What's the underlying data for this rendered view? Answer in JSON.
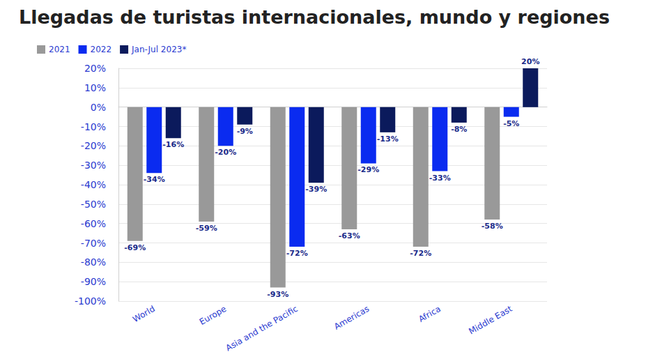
{
  "chart_data": {
    "type": "bar",
    "title": "Llegadas de turistas internacionales, mundo y regiones",
    "categories": [
      "World",
      "Europe",
      "Asia and the Pacific",
      "Americas",
      "Africa",
      "Middle East"
    ],
    "series": [
      {
        "name": "2021",
        "color": "#999999",
        "values": [
          -69,
          -59,
          -93,
          -63,
          -72,
          -58
        ],
        "value_labels": [
          "-69%",
          "-59%",
          "-93%",
          "-63%",
          "-72%",
          "-58%"
        ]
      },
      {
        "name": "2022",
        "color": "#0a2bf0",
        "values": [
          -34,
          -20,
          -72,
          -29,
          -33,
          -5
        ],
        "value_labels": [
          "-34%",
          "-20%",
          "-72%",
          "-29%",
          "-33%",
          "-5%"
        ]
      },
      {
        "name": "Jan-Jul 2023*",
        "color": "#0b1a5c",
        "values": [
          -16,
          -9,
          -39,
          -13,
          -8,
          20
        ],
        "value_labels": [
          "-16%",
          "-9%",
          "-39%",
          "-13%",
          "-8%",
          "20%"
        ]
      }
    ],
    "ylim": [
      -100,
      20
    ],
    "yticks": [
      {
        "value": -100,
        "label": "-100%"
      },
      {
        "value": -90,
        "label": "-90%"
      },
      {
        "value": -80,
        "label": "-80%"
      },
      {
        "value": -70,
        "label": "-70%"
      },
      {
        "value": -60,
        "label": "-60%"
      },
      {
        "value": -50,
        "label": "-50%"
      },
      {
        "value": -40,
        "label": "-40%"
      },
      {
        "value": -30,
        "label": "-30%"
      },
      {
        "value": -20,
        "label": "-20%"
      },
      {
        "value": -10,
        "label": "-10%"
      },
      {
        "value": 0,
        "label": "0%"
      },
      {
        "value": 10,
        "label": "10%"
      },
      {
        "value": 20,
        "label": "20%"
      }
    ],
    "grid": true,
    "legend": "top-left",
    "data_labels": true
  }
}
